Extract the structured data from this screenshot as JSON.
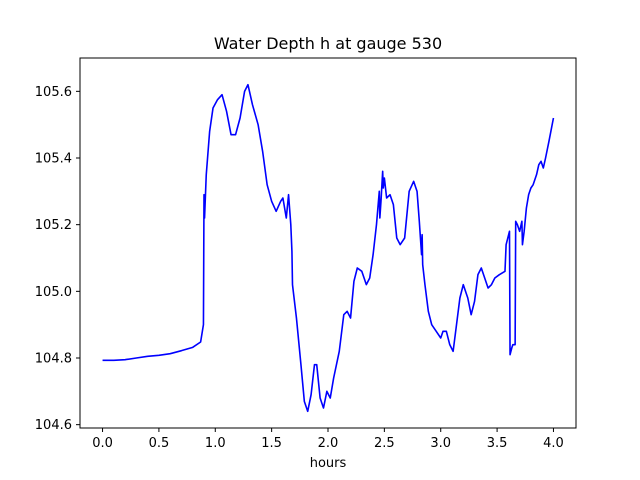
{
  "chart_data": {
    "type": "line",
    "title": "Water Depth h at gauge 530",
    "xlabel": "hours",
    "ylabel": "",
    "xlim": [
      -0.2,
      4.2
    ],
    "ylim": [
      104.59,
      105.7
    ],
    "xticks": [
      0.0,
      0.5,
      1.0,
      1.5,
      2.0,
      2.5,
      3.0,
      3.5,
      4.0
    ],
    "xtick_labels": [
      "0.0",
      "0.5",
      "1.0",
      "1.5",
      "2.0",
      "2.5",
      "3.0",
      "3.5",
      "4.0"
    ],
    "yticks": [
      104.6,
      104.8,
      105.0,
      105.2,
      105.4,
      105.6
    ],
    "ytick_labels": [
      "104.6",
      "104.8",
      "105.0",
      "105.2",
      "105.4",
      "105.6"
    ],
    "grid": false,
    "series": [
      {
        "color": "#0000ff",
        "points": [
          [
            0.0,
            104.793
          ],
          [
            0.1,
            104.793
          ],
          [
            0.2,
            104.795
          ],
          [
            0.3,
            104.8
          ],
          [
            0.4,
            104.805
          ],
          [
            0.5,
            104.808
          ],
          [
            0.6,
            104.813
          ],
          [
            0.7,
            104.822
          ],
          [
            0.8,
            104.832
          ],
          [
            0.87,
            104.848
          ],
          [
            0.895,
            104.9
          ],
          [
            0.9,
            105.29
          ],
          [
            0.905,
            105.22
          ],
          [
            0.92,
            105.35
          ],
          [
            0.95,
            105.48
          ],
          [
            0.98,
            105.55
          ],
          [
            1.02,
            105.575
          ],
          [
            1.06,
            105.59
          ],
          [
            1.1,
            105.54
          ],
          [
            1.14,
            105.47
          ],
          [
            1.18,
            105.47
          ],
          [
            1.22,
            105.52
          ],
          [
            1.26,
            105.6
          ],
          [
            1.29,
            105.62
          ],
          [
            1.33,
            105.56
          ],
          [
            1.38,
            105.5
          ],
          [
            1.42,
            105.42
          ],
          [
            1.46,
            105.32
          ],
          [
            1.5,
            105.27
          ],
          [
            1.54,
            105.24
          ],
          [
            1.58,
            105.27
          ],
          [
            1.6,
            105.28
          ],
          [
            1.63,
            105.22
          ],
          [
            1.65,
            105.29
          ],
          [
            1.67,
            105.2
          ],
          [
            1.68,
            105.12
          ],
          [
            1.685,
            105.02
          ],
          [
            1.72,
            104.92
          ],
          [
            1.76,
            104.78
          ],
          [
            1.79,
            104.67
          ],
          [
            1.82,
            104.64
          ],
          [
            1.85,
            104.69
          ],
          [
            1.88,
            104.78
          ],
          [
            1.9,
            104.78
          ],
          [
            1.93,
            104.68
          ],
          [
            1.96,
            104.65
          ],
          [
            1.99,
            104.7
          ],
          [
            2.02,
            104.68
          ],
          [
            2.05,
            104.74
          ],
          [
            2.1,
            104.82
          ],
          [
            2.14,
            104.93
          ],
          [
            2.17,
            104.94
          ],
          [
            2.2,
            104.92
          ],
          [
            2.23,
            105.03
          ],
          [
            2.26,
            105.07
          ],
          [
            2.3,
            105.06
          ],
          [
            2.34,
            105.02
          ],
          [
            2.37,
            105.04
          ],
          [
            2.4,
            105.11
          ],
          [
            2.43,
            105.2
          ],
          [
            2.455,
            105.3
          ],
          [
            2.46,
            105.22
          ],
          [
            2.47,
            105.27
          ],
          [
            2.485,
            105.36
          ],
          [
            2.49,
            105.31
          ],
          [
            2.5,
            105.34
          ],
          [
            2.52,
            105.28
          ],
          [
            2.55,
            105.29
          ],
          [
            2.58,
            105.26
          ],
          [
            2.61,
            105.16
          ],
          [
            2.64,
            105.14
          ],
          [
            2.68,
            105.16
          ],
          [
            2.72,
            105.3
          ],
          [
            2.76,
            105.33
          ],
          [
            2.79,
            105.3
          ],
          [
            2.81,
            105.21
          ],
          [
            2.83,
            105.11
          ],
          [
            2.835,
            105.17
          ],
          [
            2.84,
            105.08
          ],
          [
            2.86,
            105.02
          ],
          [
            2.89,
            104.94
          ],
          [
            2.92,
            104.9
          ],
          [
            2.96,
            104.88
          ],
          [
            3.0,
            104.86
          ],
          [
            3.02,
            104.88
          ],
          [
            3.05,
            104.88
          ],
          [
            3.08,
            104.84
          ],
          [
            3.11,
            104.82
          ],
          [
            3.14,
            104.9
          ],
          [
            3.17,
            104.98
          ],
          [
            3.2,
            105.02
          ],
          [
            3.24,
            104.98
          ],
          [
            3.27,
            104.93
          ],
          [
            3.3,
            104.97
          ],
          [
            3.33,
            105.05
          ],
          [
            3.36,
            105.07
          ],
          [
            3.39,
            105.04
          ],
          [
            3.42,
            105.01
          ],
          [
            3.45,
            105.02
          ],
          [
            3.48,
            105.04
          ],
          [
            3.52,
            105.05
          ],
          [
            3.57,
            105.06
          ],
          [
            3.58,
            105.14
          ],
          [
            3.61,
            105.18
          ],
          [
            3.615,
            104.81
          ],
          [
            3.63,
            104.83
          ],
          [
            3.64,
            104.84
          ],
          [
            3.66,
            104.84
          ],
          [
            3.665,
            105.21
          ],
          [
            3.68,
            105.2
          ],
          [
            3.7,
            105.18
          ],
          [
            3.72,
            105.21
          ],
          [
            3.725,
            105.14
          ],
          [
            3.74,
            105.18
          ],
          [
            3.76,
            105.25
          ],
          [
            3.78,
            105.29
          ],
          [
            3.8,
            105.31
          ],
          [
            3.82,
            105.32
          ],
          [
            3.85,
            105.35
          ],
          [
            3.87,
            105.38
          ],
          [
            3.89,
            105.39
          ],
          [
            3.91,
            105.37
          ],
          [
            3.93,
            105.4
          ],
          [
            3.96,
            105.45
          ],
          [
            4.0,
            105.52
          ]
        ]
      }
    ]
  }
}
